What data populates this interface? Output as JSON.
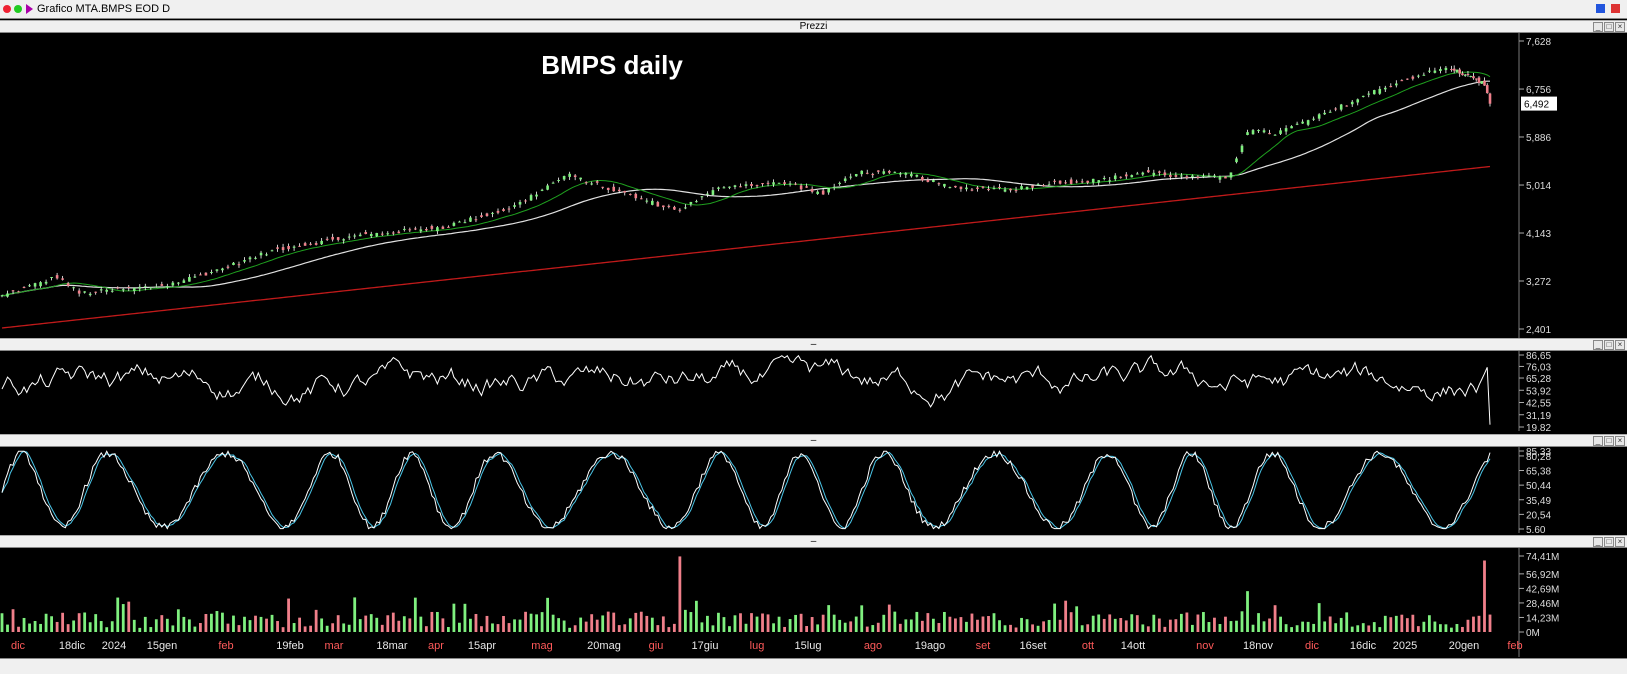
{
  "window": {
    "title": "Grafico MTA.BMPS EOD D"
  },
  "panels": {
    "price": {
      "header": "Prezzi",
      "chart_title": "BMPS daily"
    },
    "osc1": {
      "header": "–"
    },
    "osc2": {
      "header": "–"
    },
    "volume": {
      "header": "–"
    }
  },
  "colors": {
    "up": "#7ff07f",
    "down": "#f07f8a",
    "ma_fast": "#1fa01f",
    "ma_mid": "#e0e0e0",
    "ma_slow": "#c01a1a",
    "stoch_k": "#ffffff",
    "stoch_d": "#49c4e6"
  },
  "icons": [
    "minimize-icon",
    "maximize-icon",
    "close-icon"
  ],
  "chart_data": [
    {
      "type": "line",
      "title": "BMPS daily",
      "yaxis_ticks": [
        "7,628",
        "6,756",
        "5,886",
        "5,014",
        "4,143",
        "3,272",
        "2,401"
      ],
      "ylim": [
        2.401,
        7.628
      ],
      "last_price_label": "6,492",
      "x_labels": [
        {
          "t": "dic",
          "c": "red"
        },
        {
          "t": "18dic",
          "c": "white"
        },
        {
          "t": "2024",
          "c": "white"
        },
        {
          "t": "15gen",
          "c": "white"
        },
        {
          "t": "feb",
          "c": "red"
        },
        {
          "t": "19feb",
          "c": "white"
        },
        {
          "t": "mar",
          "c": "red"
        },
        {
          "t": "18mar",
          "c": "white"
        },
        {
          "t": "apr",
          "c": "red"
        },
        {
          "t": "15apr",
          "c": "white"
        },
        {
          "t": "mag",
          "c": "red"
        },
        {
          "t": "20mag",
          "c": "white"
        },
        {
          "t": "giu",
          "c": "red"
        },
        {
          "t": "17giu",
          "c": "white"
        },
        {
          "t": "lug",
          "c": "red"
        },
        {
          "t": "15lug",
          "c": "white"
        },
        {
          "t": "ago",
          "c": "red"
        },
        {
          "t": "19ago",
          "c": "white"
        },
        {
          "t": "set",
          "c": "red"
        },
        {
          "t": "16set",
          "c": "white"
        },
        {
          "t": "ott",
          "c": "red"
        },
        {
          "t": "14ott",
          "c": "white"
        },
        {
          "t": "nov",
          "c": "red"
        },
        {
          "t": "18nov",
          "c": "white"
        },
        {
          "t": "dic",
          "c": "red"
        },
        {
          "t": "16dic",
          "c": "white"
        },
        {
          "t": "2025",
          "c": "white"
        },
        {
          "t": "20gen",
          "c": "white"
        },
        {
          "t": "feb",
          "c": "red"
        }
      ],
      "close_anchors": [
        [
          0,
          3.0
        ],
        [
          20,
          3.35
        ],
        [
          28,
          3.05
        ],
        [
          40,
          3.1
        ],
        [
          60,
          3.2
        ],
        [
          80,
          3.5
        ],
        [
          100,
          3.85
        ],
        [
          130,
          4.1
        ],
        [
          160,
          4.25
        ],
        [
          185,
          4.6
        ],
        [
          205,
          5.2
        ],
        [
          220,
          4.95
        ],
        [
          245,
          4.55
        ],
        [
          262,
          5.0
        ],
        [
          285,
          5.05
        ],
        [
          298,
          4.85
        ],
        [
          310,
          5.25
        ],
        [
          330,
          5.2
        ],
        [
          345,
          4.95
        ],
        [
          368,
          4.95
        ],
        [
          380,
          5.05
        ],
        [
          398,
          5.1
        ],
        [
          415,
          5.25
        ],
        [
          430,
          5.15
        ],
        [
          445,
          5.15
        ],
        [
          452,
          6.0
        ],
        [
          462,
          5.95
        ],
        [
          480,
          6.3
        ],
        [
          495,
          6.65
        ],
        [
          510,
          6.95
        ],
        [
          525,
          7.15
        ],
        [
          538,
          6.85
        ],
        [
          540,
          6.49
        ]
      ]
    },
    {
      "type": "line",
      "title": "",
      "yaxis_ticks": [
        "86,65",
        "76,03",
        "65,28",
        "53,92",
        "42,55",
        "31,19",
        "19,82"
      ],
      "ylim": [
        19.82,
        86.65
      ]
    },
    {
      "type": "line",
      "title": "",
      "yaxis_ticks": [
        "85,33",
        "80,28",
        "65,38",
        "50,44",
        "35,49",
        "20,54",
        "5,60"
      ],
      "ylim": [
        5.6,
        85.33
      ]
    },
    {
      "type": "bar",
      "title": "",
      "yaxis_ticks": [
        "74,41M",
        "56,92M",
        "42,69M",
        "28,46M",
        "14,23M",
        "0M"
      ],
      "ylim": [
        0,
        74.41
      ]
    }
  ]
}
